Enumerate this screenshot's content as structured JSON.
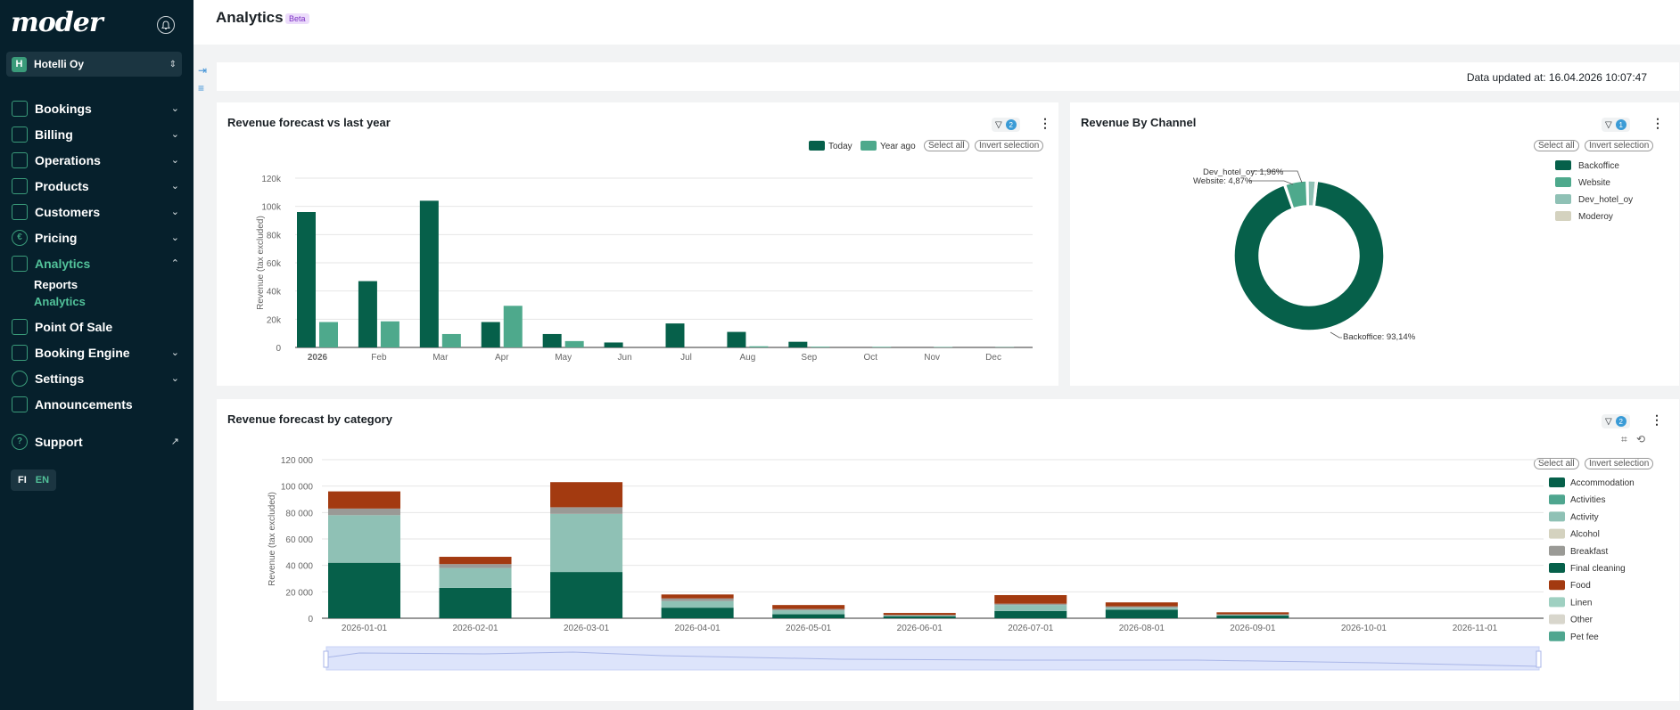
{
  "app": {
    "logo": "moder",
    "bell_icon": "bell-icon"
  },
  "org": {
    "badge": "H",
    "name": "Hotelli Oy"
  },
  "nav": {
    "items": [
      {
        "label": "Bookings",
        "icon": "calendar-icon",
        "chevron": "⌄"
      },
      {
        "label": "Billing",
        "icon": "credit-card-icon",
        "chevron": "⌄"
      },
      {
        "label": "Operations",
        "icon": "sliders-icon",
        "chevron": "⌄"
      },
      {
        "label": "Products",
        "icon": "home-icon",
        "chevron": "⌄"
      },
      {
        "label": "Customers",
        "icon": "users-icon",
        "chevron": "⌄"
      },
      {
        "label": "Pricing",
        "icon": "euro-icon",
        "chevron": "⌄"
      },
      {
        "label": "Analytics",
        "icon": "document-chart-icon",
        "chevron": "⌃"
      },
      {
        "label": "Point Of Sale",
        "icon": "shopping-bag-icon"
      },
      {
        "label": "Booking Engine",
        "icon": "cart-icon",
        "chevron": "⌄"
      },
      {
        "label": "Settings",
        "icon": "gear-icon",
        "chevron": "⌄"
      },
      {
        "label": "Announcements",
        "icon": "megaphone-icon"
      },
      {
        "label": "Support",
        "icon": "help-circle-icon",
        "external": "↗"
      }
    ],
    "analytics_sub": [
      "Reports",
      "Analytics"
    ]
  },
  "lang": {
    "fi": "FI",
    "en": "EN"
  },
  "header": {
    "title": "Analytics",
    "badge": "Beta"
  },
  "updated": "Data updated at: 16.04.2026 10:07:47",
  "cards": {
    "forecast": {
      "title": "Revenue forecast vs last year",
      "filter_count": "2"
    },
    "channel": {
      "title": "Revenue By Channel",
      "filter_count": "1"
    },
    "category": {
      "title": "Revenue forecast by category",
      "filter_count": "2"
    }
  },
  "buttons": {
    "select_all": "Select all",
    "invert": "Invert selection"
  },
  "colors": {
    "dark_green": "#06604a",
    "mid_green": "#4ea98c",
    "light_teal": "#8fc1b5",
    "beige": "#d4d2bf",
    "gray": "#9a9a96",
    "rust": "#a33a10",
    "pale_teal": "#9fd0c1",
    "stone": "#d8d6cc",
    "teal": "#4fa68f"
  },
  "chart_data": [
    {
      "type": "bar",
      "title": "Revenue forecast vs last year",
      "ylabel": "Revenue (tax excluded)",
      "categories": [
        "2026",
        "Feb",
        "Mar",
        "Apr",
        "May",
        "Jun",
        "Jul",
        "Aug",
        "Sep",
        "Oct",
        "Nov",
        "Dec"
      ],
      "yticks": [
        "0",
        "20k",
        "40k",
        "60k",
        "80k",
        "100k",
        "120k"
      ],
      "ylim": [
        0,
        120000
      ],
      "legend_position": "top-right",
      "series": [
        {
          "name": "Today",
          "values": [
            96000,
            47000,
            104000,
            18000,
            9500,
            3500,
            17000,
            11000,
            4000,
            0,
            0,
            0
          ]
        },
        {
          "name": "Year ago",
          "values": [
            18000,
            18500,
            9500,
            29500,
            4500,
            0,
            0,
            800,
            500,
            400,
            300,
            200
          ]
        }
      ]
    },
    {
      "type": "pie",
      "title": "Revenue By Channel",
      "donut": true,
      "legend_position": "right",
      "slices": [
        {
          "name": "Backoffice",
          "value": 93.14,
          "label": "Backoffice: 93,14%"
        },
        {
          "name": "Website",
          "value": 4.87,
          "label": "Website: 4,87%"
        },
        {
          "name": "Dev_hotel_oy",
          "value": 1.96,
          "label": "Dev_hotel_oy: 1,96%"
        },
        {
          "name": "Moderoy",
          "value": 0.03
        }
      ]
    },
    {
      "type": "bar",
      "stacked": true,
      "title": "Revenue forecast by category",
      "ylabel": "Revenue (tax excluded)",
      "categories": [
        "2026-01-01",
        "2026-02-01",
        "2026-03-01",
        "2026-04-01",
        "2026-05-01",
        "2026-06-01",
        "2026-07-01",
        "2026-08-01",
        "2026-09-01",
        "2026-10-01",
        "2026-11-01"
      ],
      "yticks": [
        "0",
        "20 000",
        "40 000",
        "60 000",
        "80 000",
        "100 000",
        "120 000"
      ],
      "ylim": [
        0,
        120000
      ],
      "legend_position": "right",
      "legend": [
        "Accommodation",
        "Activities",
        "Activity",
        "Alcohol",
        "Breakfast",
        "Final cleaning",
        "Food",
        "Linen",
        "Other",
        "Pet fee"
      ],
      "series": [
        {
          "name": "Accommodation",
          "values": [
            42000,
            23000,
            35000,
            8000,
            3000,
            1500,
            5500,
            6500,
            2000,
            0,
            0
          ]
        },
        {
          "name": "Activity",
          "values": [
            36000,
            15000,
            44000,
            5000,
            3000,
            500,
            4500,
            1500,
            500,
            0,
            0
          ]
        },
        {
          "name": "Breakfast",
          "values": [
            5000,
            3000,
            5000,
            2000,
            1000,
            500,
            1000,
            1000,
            500,
            0,
            0
          ]
        },
        {
          "name": "Food",
          "values": [
            13000,
            5500,
            19000,
            3000,
            3000,
            1500,
            6500,
            3000,
            1500,
            0,
            0
          ]
        }
      ]
    }
  ]
}
